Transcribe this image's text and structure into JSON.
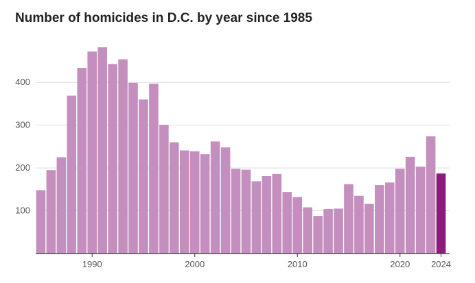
{
  "chart_data": {
    "type": "bar",
    "title": "Number of homicides in D.C. by year since 1985",
    "xlabel": "",
    "ylabel": "",
    "categories": [
      1985,
      1986,
      1987,
      1988,
      1989,
      1990,
      1991,
      1992,
      1993,
      1994,
      1995,
      1996,
      1997,
      1998,
      1999,
      2000,
      2001,
      2002,
      2003,
      2004,
      2005,
      2006,
      2007,
      2008,
      2009,
      2010,
      2011,
      2012,
      2013,
      2014,
      2015,
      2016,
      2017,
      2018,
      2019,
      2020,
      2021,
      2022,
      2023,
      2024
    ],
    "values": [
      148,
      195,
      225,
      369,
      434,
      472,
      482,
      443,
      454,
      399,
      360,
      397,
      301,
      260,
      241,
      239,
      232,
      262,
      248,
      198,
      196,
      169,
      181,
      186,
      144,
      132,
      108,
      88,
      104,
      105,
      162,
      135,
      116,
      160,
      166,
      198,
      226,
      203,
      274,
      187
    ],
    "highlight_category": 2024,
    "yticks": [
      100,
      200,
      300,
      400
    ],
    "xticks": [
      1990,
      2000,
      2010,
      2020,
      2024
    ],
    "ylim": [
      0,
      500
    ],
    "grid": true,
    "colors": {
      "bar": "#c48fbe",
      "highlight": "#8e1a7e",
      "grid": "#dddddd",
      "axis": "#333333"
    }
  }
}
